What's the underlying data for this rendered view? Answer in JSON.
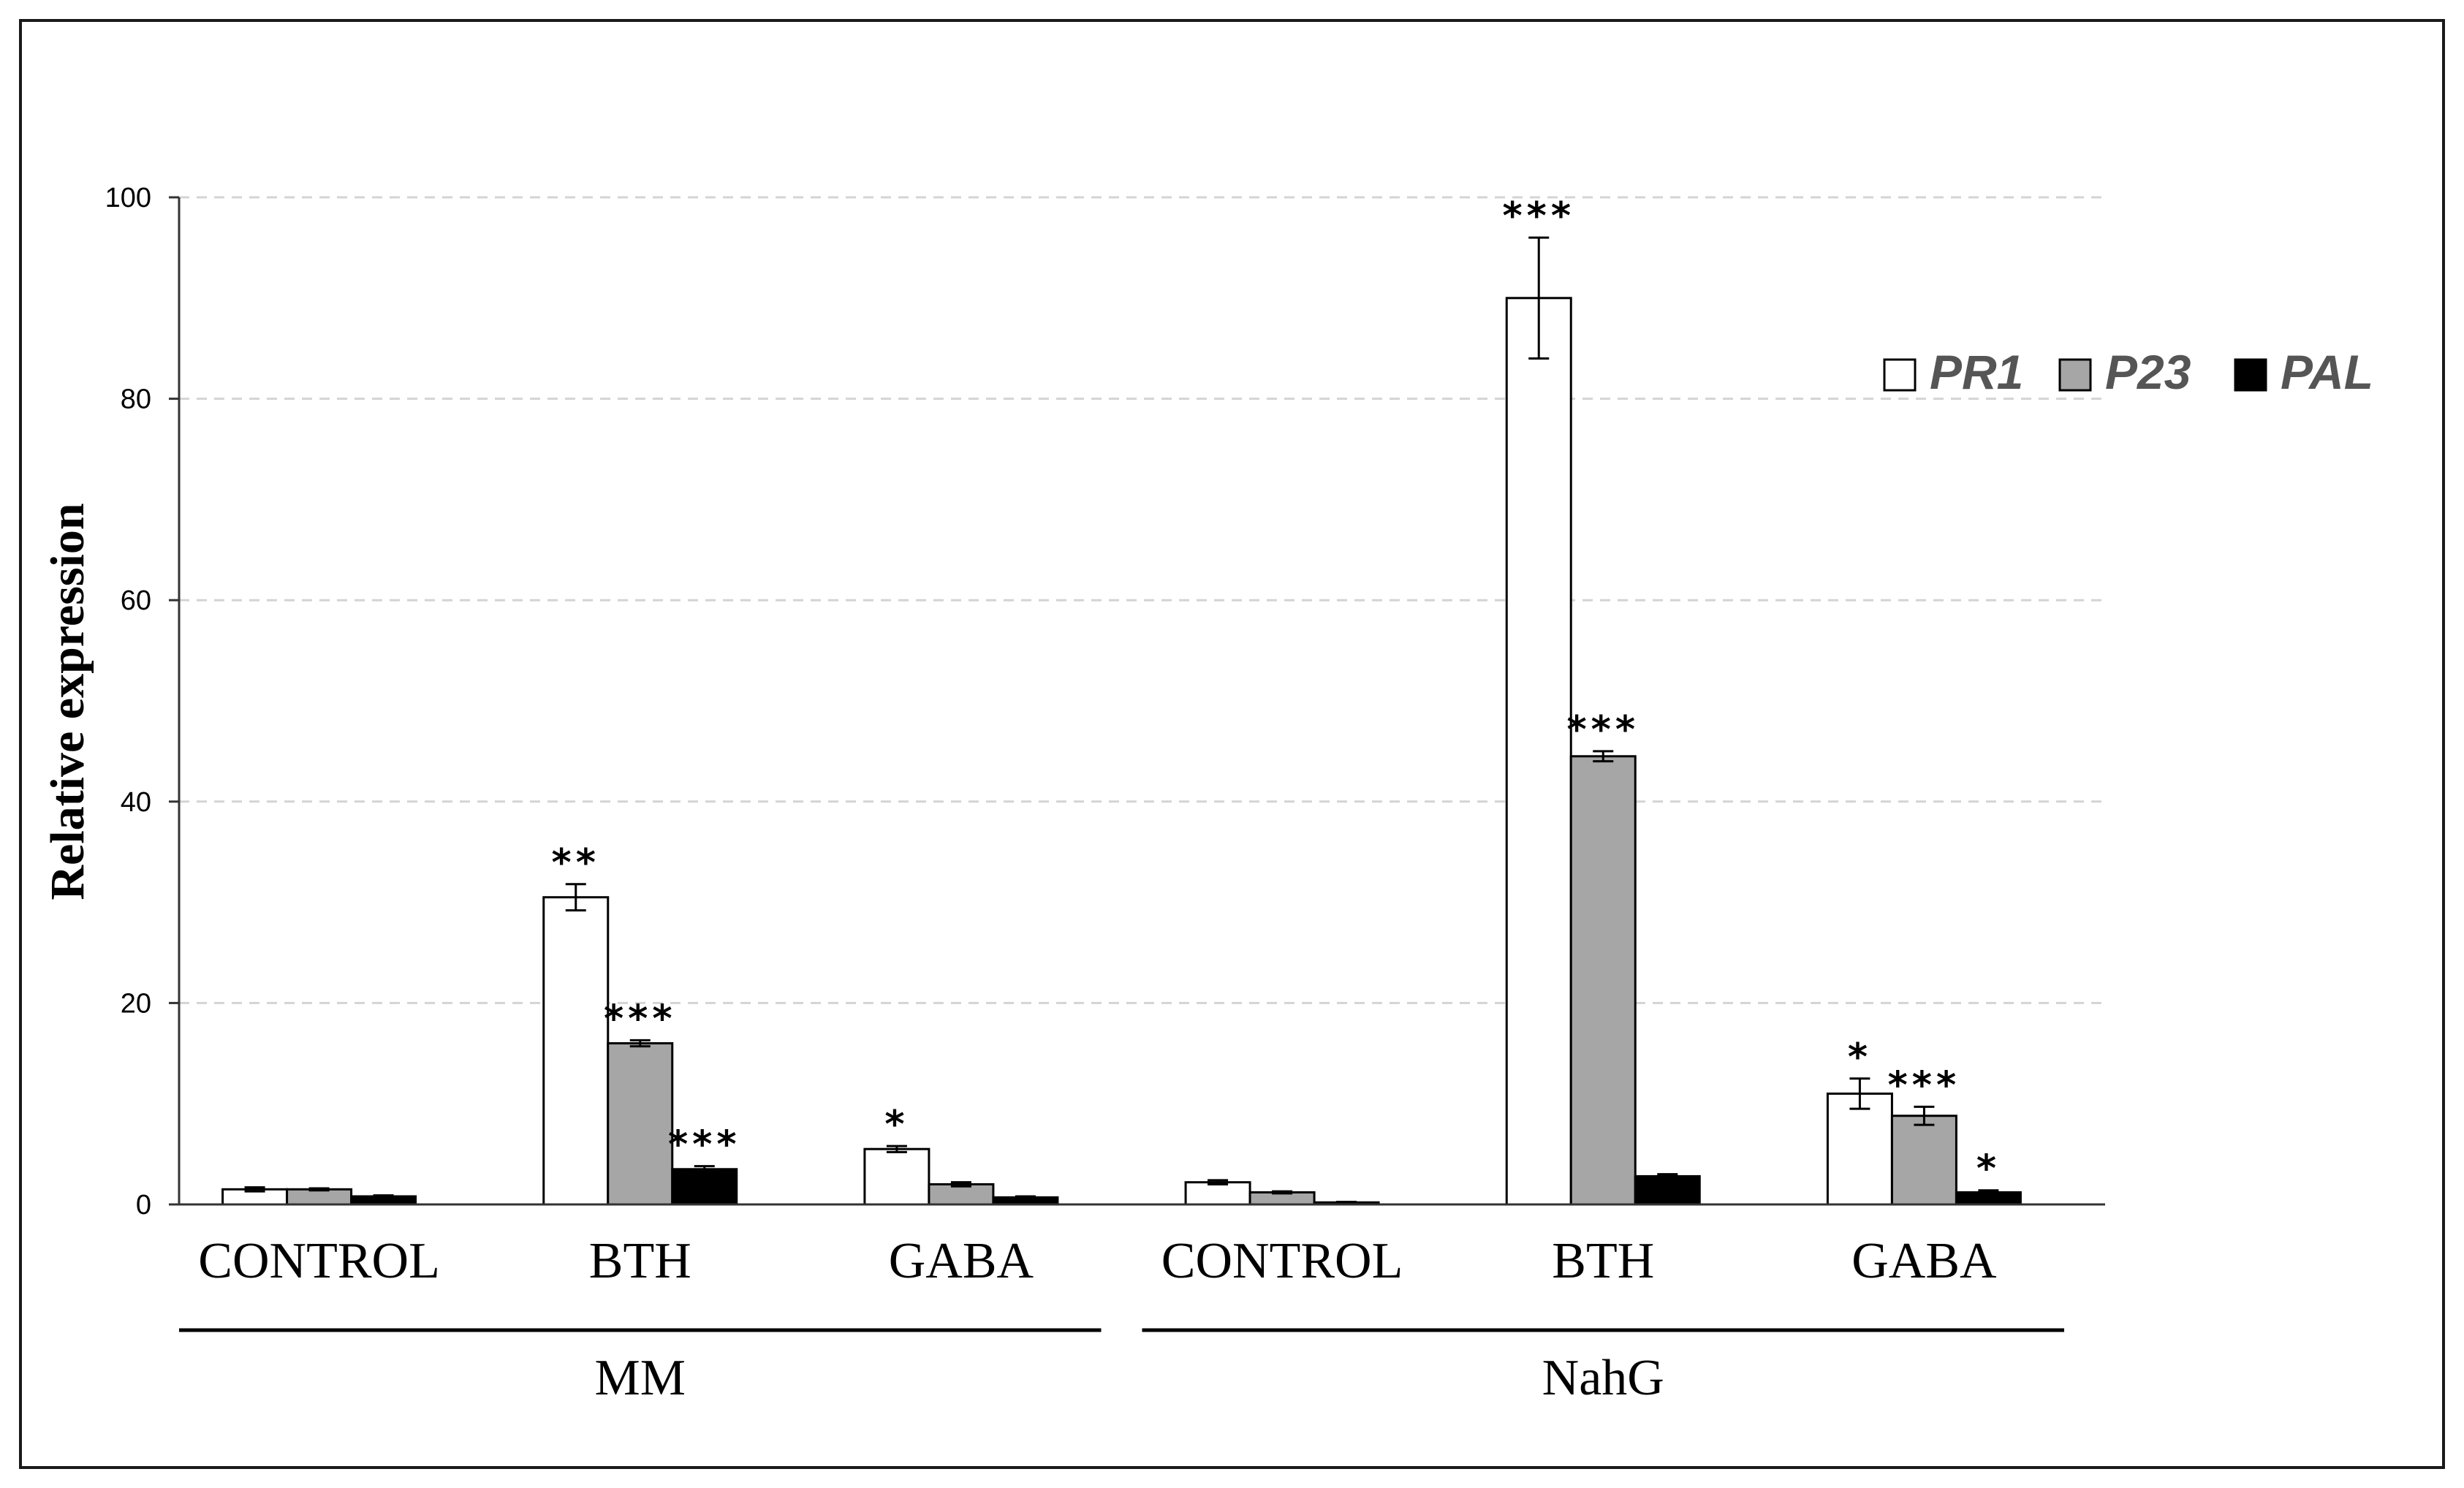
{
  "chart_data": {
    "type": "bar",
    "title": "",
    "xlabel": "",
    "ylabel": "Relative expression",
    "ylim": [
      0,
      100
    ],
    "yticks": [
      0,
      20,
      40,
      60,
      80,
      100
    ],
    "grid": true,
    "legend_position": "top-right",
    "categories": [
      "CONTROL",
      "BTH",
      "GABA",
      "CONTROL",
      "BTH",
      "GABA"
    ],
    "groups": [
      {
        "label": "MM",
        "category_indices": [
          0,
          1,
          2
        ]
      },
      {
        "label": "NahG",
        "category_indices": [
          3,
          4,
          5
        ]
      }
    ],
    "series": [
      {
        "name": "PR1",
        "color": "#ffffff",
        "values": [
          1.5,
          30.5,
          5.5,
          2.2,
          90.0,
          11.0
        ],
        "errors": [
          0.2,
          1.3,
          0.3,
          0.2,
          6.0,
          1.5
        ],
        "significance": [
          "",
          "**",
          "*",
          "",
          "***",
          "*"
        ]
      },
      {
        "name": "P23",
        "color": "#a6a6a6",
        "values": [
          1.5,
          16.0,
          2.0,
          1.2,
          44.5,
          8.8
        ],
        "errors": [
          0.1,
          0.3,
          0.2,
          0.1,
          0.5,
          0.9
        ],
        "significance": [
          "",
          "***",
          "",
          "",
          "***",
          "***"
        ]
      },
      {
        "name": "PAL",
        "color": "#000000",
        "values": [
          0.8,
          3.5,
          0.7,
          0.2,
          2.8,
          1.2
        ],
        "errors": [
          0.1,
          0.3,
          0.1,
          0.05,
          0.2,
          0.2
        ],
        "significance": [
          "",
          "***",
          "",
          "",
          "",
          "*"
        ]
      }
    ]
  }
}
